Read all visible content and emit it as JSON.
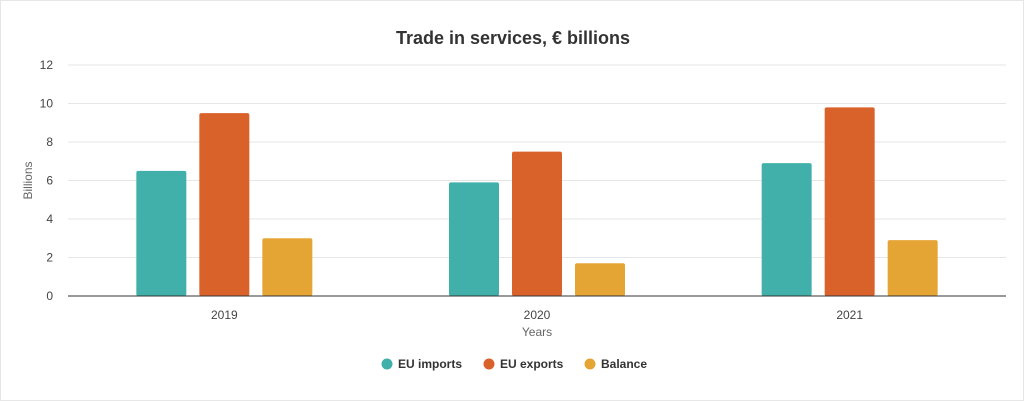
{
  "chart_data": {
    "type": "bar",
    "title": "Trade in services, € billions",
    "xlabel": "Years",
    "ylabel": "Billions",
    "categories": [
      "2019",
      "2020",
      "2021"
    ],
    "series": [
      {
        "name": "EU imports",
        "color": "#42b0aa",
        "values": [
          6.5,
          5.9,
          6.9
        ]
      },
      {
        "name": "EU exports",
        "color": "#d9622b",
        "values": [
          9.5,
          7.5,
          9.8
        ]
      },
      {
        "name": "Balance",
        "color": "#e5a535",
        "values": [
          3.0,
          1.7,
          2.9
        ]
      }
    ],
    "ylim": [
      0,
      12
    ],
    "yticks": [
      0,
      2,
      4,
      6,
      8,
      10,
      12
    ],
    "grid": true,
    "legend_position": "bottom"
  }
}
